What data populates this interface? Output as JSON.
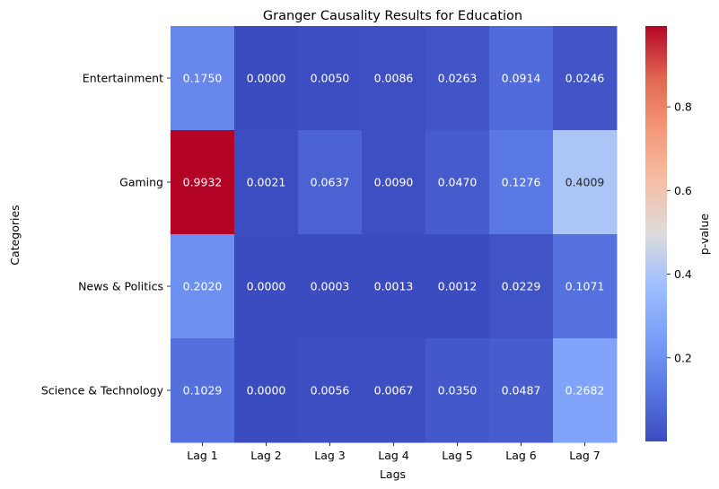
{
  "chart_data": {
    "type": "heatmap",
    "title": "Granger Causality Results for Education",
    "xlabel": "Lags",
    "ylabel": "Categories",
    "x": [
      "Lag 1",
      "Lag 2",
      "Lag 3",
      "Lag 4",
      "Lag 5",
      "Lag 6",
      "Lag 7"
    ],
    "y": [
      "Entertainment",
      "Gaming",
      "News & Politics",
      "Science & Technology"
    ],
    "values": [
      [
        0.175,
        0.0,
        0.005,
        0.0086,
        0.0263,
        0.0914,
        0.0246
      ],
      [
        0.9932,
        0.0021,
        0.0637,
        0.009,
        0.047,
        0.1276,
        0.4009
      ],
      [
        0.202,
        0.0,
        0.0003,
        0.0013,
        0.0012,
        0.0229,
        0.1071
      ],
      [
        0.1029,
        0.0,
        0.0056,
        0.0067,
        0.035,
        0.0487,
        0.2682
      ]
    ],
    "value_labels": [
      [
        "0.1750",
        "0.0000",
        "0.0050",
        "0.0086",
        "0.0263",
        "0.0914",
        "0.0246"
      ],
      [
        "0.9932",
        "0.0021",
        "0.0637",
        "0.0090",
        "0.0470",
        "0.1276",
        "0.4009"
      ],
      [
        "0.2020",
        "0.0000",
        "0.0003",
        "0.0013",
        "0.0012",
        "0.0229",
        "0.1071"
      ],
      [
        "0.1029",
        "0.0000",
        "0.0056",
        "0.0067",
        "0.0350",
        "0.0487",
        "0.2682"
      ]
    ],
    "colorbar": {
      "label": "p-value",
      "colormap": "coolwarm",
      "vmin": 0.0,
      "vmax": 0.9932,
      "ticks": [
        0.2,
        0.4,
        0.6,
        0.8
      ],
      "tick_labels": [
        "0.2",
        "0.4",
        "0.6",
        "0.8"
      ]
    },
    "grid": false
  }
}
